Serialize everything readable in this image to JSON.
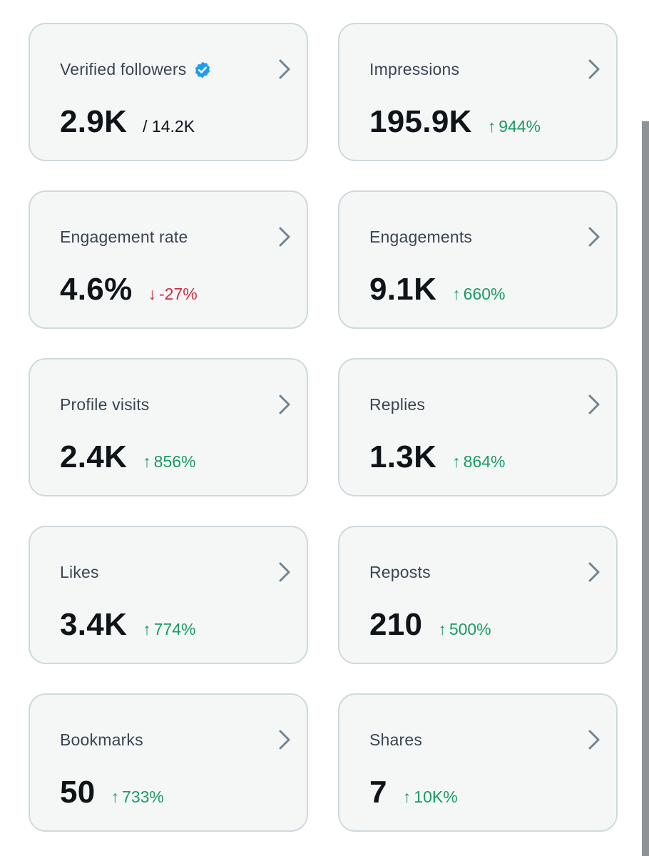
{
  "cards": [
    {
      "label": "Verified followers",
      "verified": true,
      "value": "2.9K",
      "sub": "/ 14.2K"
    },
    {
      "label": "Impressions",
      "value": "195.9K",
      "delta": {
        "dir": "up",
        "arrow": "↑",
        "text": "944%"
      }
    },
    {
      "label": "Engagement rate",
      "value": "4.6%",
      "delta": {
        "dir": "down",
        "arrow": "↓",
        "text": "-27%"
      }
    },
    {
      "label": "Engagements",
      "value": "9.1K",
      "delta": {
        "dir": "up",
        "arrow": "↑",
        "text": "660%"
      }
    },
    {
      "label": "Profile visits",
      "value": "2.4K",
      "delta": {
        "dir": "up",
        "arrow": "↑",
        "text": "856%"
      }
    },
    {
      "label": "Replies",
      "value": "1.3K",
      "delta": {
        "dir": "up",
        "arrow": "↑",
        "text": "864%"
      }
    },
    {
      "label": "Likes",
      "value": "3.4K",
      "delta": {
        "dir": "up",
        "arrow": "↑",
        "text": "774%"
      }
    },
    {
      "label": "Reposts",
      "value": "210",
      "delta": {
        "dir": "up",
        "arrow": "↑",
        "text": "500%"
      }
    },
    {
      "label": "Bookmarks",
      "value": "50",
      "delta": {
        "dir": "up",
        "arrow": "↑",
        "text": "733%"
      }
    },
    {
      "label": "Shares",
      "value": "7",
      "delta": {
        "dir": "up",
        "arrow": "↑",
        "text": "10K%"
      }
    }
  ],
  "colors": {
    "up": "#1a9a64",
    "down": "#d22a3e",
    "verified_badge": "#1d9bf0",
    "chevron": "#6e8596"
  },
  "icons": {
    "verified": "verified-badge-icon",
    "chevron": "chevron-right-icon"
  }
}
